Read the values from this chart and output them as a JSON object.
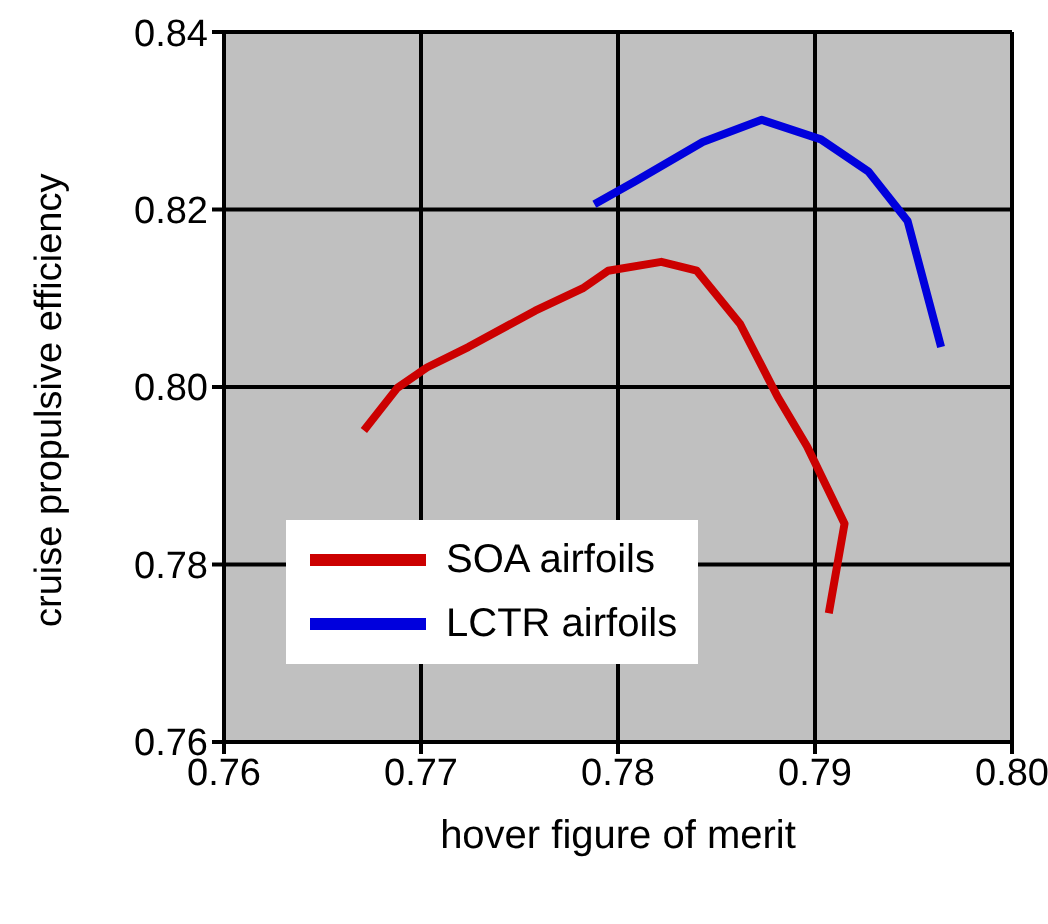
{
  "chart_data": {
    "type": "line",
    "xlabel": "hover figure of merit",
    "ylabel": "cruise propulsive efficiency",
    "xlim": [
      0.76,
      0.8
    ],
    "xticks": [
      {
        "value": 0.76,
        "label": "0.76"
      },
      {
        "value": 0.77,
        "label": "0.77"
      },
      {
        "value": 0.78,
        "label": "0.78"
      },
      {
        "value": 0.79,
        "label": "0.79"
      },
      {
        "value": 0.8,
        "label": "0.80"
      }
    ],
    "ylim": [
      0.76,
      0.84
    ],
    "yticks": [
      {
        "value": 0.76,
        "label": "0.76"
      },
      {
        "value": 0.78,
        "label": "0.78"
      },
      {
        "value": 0.8,
        "label": "0.80"
      },
      {
        "value": 0.82,
        "label": "0.82"
      },
      {
        "value": 0.84,
        "label": "0.84"
      }
    ],
    "grid": true,
    "legend": "bottom left",
    "marker": "none",
    "line_style": "solid",
    "series": [
      {
        "name": "SOA airfoils",
        "color": "#cc0000",
        "x": [
          0.7671,
          0.7688,
          0.7703,
          0.7724,
          0.7758,
          0.7782,
          0.7795,
          0.7822,
          0.784,
          0.7862,
          0.7881,
          0.7896,
          0.7915,
          0.7907
        ],
        "values": [
          0.7951,
          0.7999,
          0.8022,
          0.8045,
          0.8086,
          0.8111,
          0.8131,
          0.8141,
          0.8131,
          0.8071,
          0.7989,
          0.7933,
          0.7846,
          0.7745
        ]
      },
      {
        "name": "LCTR airfoils",
        "color": "#0000dd",
        "x": [
          0.7788,
          0.7809,
          0.7843,
          0.7873,
          0.7903,
          0.7927,
          0.7947,
          0.7964
        ],
        "values": [
          0.8206,
          0.8232,
          0.8276,
          0.8301,
          0.8279,
          0.8243,
          0.8187,
          0.8045
        ]
      }
    ]
  }
}
